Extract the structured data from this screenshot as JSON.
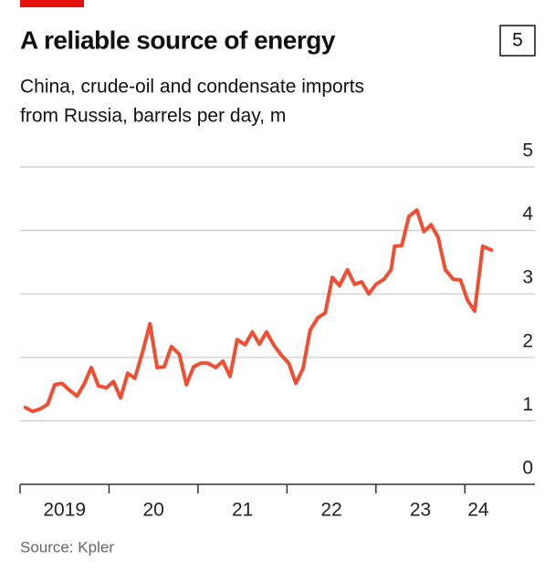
{
  "chart_data": {
    "type": "line",
    "title": "A reliable source of energy",
    "chart_number": "5",
    "subtitle": [
      "China, crude-oil and condensate imports",
      "from Russia, barrels per day, m"
    ],
    "source": "Source: Kpler",
    "x": [
      2019.06,
      2019.14,
      2019.23,
      2019.31,
      2019.39,
      2019.47,
      2019.55,
      2019.64,
      2019.72,
      2019.8,
      2019.88,
      2019.97,
      2020.05,
      2020.13,
      2020.21,
      2020.29,
      2020.38,
      2020.46,
      2020.54,
      2020.62,
      2020.7,
      2020.79,
      2020.87,
      2020.95,
      2021.03,
      2021.11,
      2021.2,
      2021.28,
      2021.36,
      2021.44,
      2021.53,
      2021.61,
      2021.69,
      2021.77,
      2021.85,
      2021.94,
      2022.02,
      2022.1,
      2022.18,
      2022.26,
      2022.35,
      2022.43,
      2022.51,
      2022.59,
      2022.68,
      2022.76,
      2022.84,
      2022.92,
      2023.0,
      2023.09,
      2023.17,
      2023.21,
      2023.29,
      2023.37,
      2023.46,
      2023.54,
      2023.62,
      2023.7,
      2023.78,
      2023.87,
      2023.95,
      2024.03,
      2024.11,
      2024.2,
      2024.3
    ],
    "series": [
      {
        "name": "Imports",
        "color": "#f04e33",
        "values": [
          1.21,
          1.15,
          1.19,
          1.26,
          1.57,
          1.59,
          1.49,
          1.39,
          1.58,
          1.84,
          1.55,
          1.52,
          1.62,
          1.36,
          1.75,
          1.67,
          2.1,
          2.53,
          1.84,
          1.85,
          2.17,
          2.05,
          1.57,
          1.85,
          1.91,
          1.91,
          1.84,
          1.94,
          1.7,
          2.28,
          2.2,
          2.4,
          2.21,
          2.4,
          2.2,
          2.03,
          1.91,
          1.59,
          1.82,
          2.43,
          2.63,
          2.7,
          3.26,
          3.13,
          3.38,
          3.15,
          3.19,
          3.0,
          3.15,
          3.23,
          3.38,
          3.75,
          3.76,
          4.22,
          4.32,
          3.98,
          4.09,
          3.89,
          3.38,
          3.23,
          3.22,
          2.9,
          2.73,
          3.75,
          3.69
        ]
      }
    ],
    "xlim": [
      2019,
      2024.5
    ],
    "xtick_marks": [
      2019,
      2020,
      2021,
      2022,
      2023,
      2024
    ],
    "xticks": [
      {
        "value": 2019.5,
        "label": "2019"
      },
      {
        "value": 2020.5,
        "label": "20"
      },
      {
        "value": 2021.5,
        "label": "21"
      },
      {
        "value": 2022.5,
        "label": "22"
      },
      {
        "value": 2023.5,
        "label": "23"
      },
      {
        "value": 2024.15,
        "label": "24"
      }
    ],
    "ylim": [
      0,
      5
    ],
    "yticks": [
      0,
      1,
      2,
      3,
      4,
      5
    ],
    "grid": true
  }
}
